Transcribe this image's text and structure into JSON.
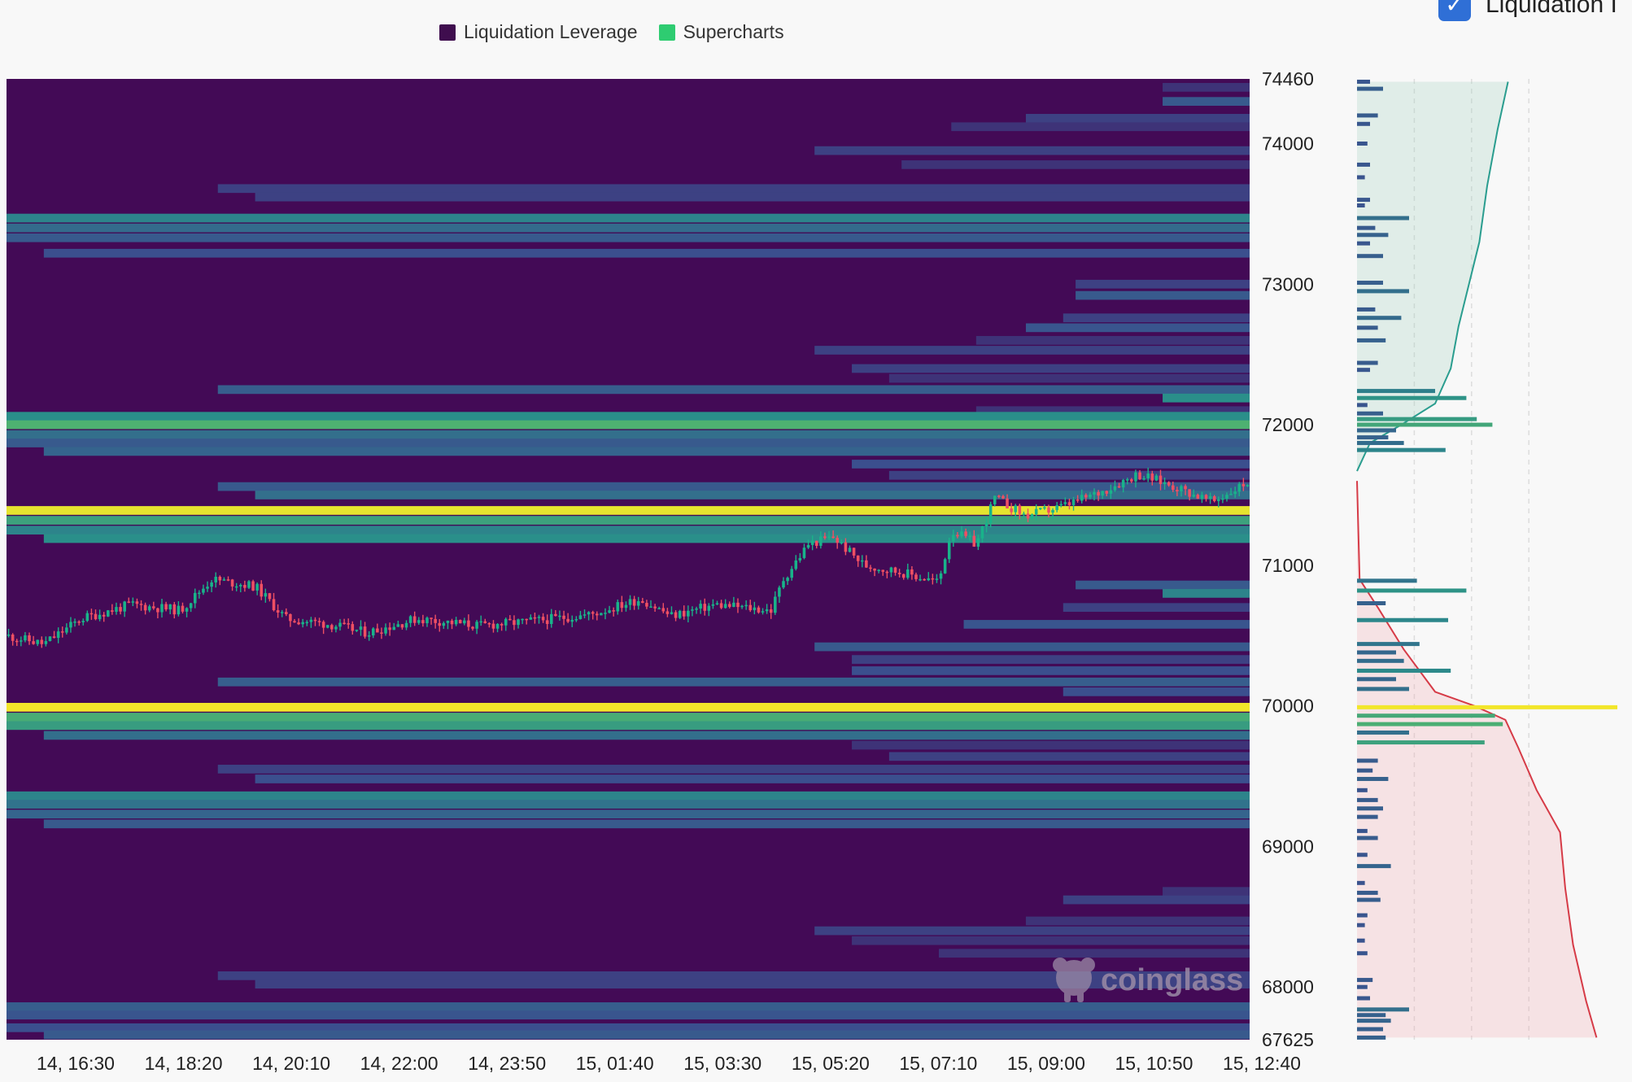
{
  "legend": {
    "items": [
      {
        "label": "Liquidation Leverage",
        "color": "#3f0d4e"
      },
      {
        "label": "Supercharts",
        "color": "#2ecc71"
      }
    ]
  },
  "top_right": {
    "label": "Liquidation I",
    "checked": true,
    "checkbox_color": "#2f6fd6"
  },
  "watermark": {
    "text": "coinglass"
  },
  "chart_data": {
    "type": "heatmap",
    "title": "",
    "colors": {
      "background": "#430a56",
      "low": "#3b4f8e",
      "mid": "#2a8f8a",
      "high": "#6fd05a",
      "max": "#f2e62a",
      "candle_up": "#19b38a",
      "candle_down": "#ef4f63"
    },
    "x_ticks": [
      "14, 16:30",
      "14, 18:20",
      "14, 20:10",
      "14, 22:00",
      "14, 23:50",
      "15, 01:40",
      "15, 03:30",
      "15, 05:20",
      "15, 07:10",
      "15, 09:00",
      "15, 10:50",
      "15, 12:40"
    ],
    "y_ticks": [
      74460,
      74000,
      73000,
      72000,
      71000,
      70000,
      69000,
      68000,
      67625
    ],
    "ylim": [
      67625,
      74460
    ],
    "price_path": [
      {
        "t": 0.0,
        "price": 70500
      },
      {
        "t": 0.03,
        "price": 70440
      },
      {
        "t": 0.06,
        "price": 70620
      },
      {
        "t": 0.1,
        "price": 70720
      },
      {
        "t": 0.14,
        "price": 70680
      },
      {
        "t": 0.165,
        "price": 70900
      },
      {
        "t": 0.2,
        "price": 70850
      },
      {
        "t": 0.225,
        "price": 70620
      },
      {
        "t": 0.26,
        "price": 70580
      },
      {
        "t": 0.29,
        "price": 70520
      },
      {
        "t": 0.33,
        "price": 70620
      },
      {
        "t": 0.38,
        "price": 70570
      },
      {
        "t": 0.42,
        "price": 70600
      },
      {
        "t": 0.47,
        "price": 70650
      },
      {
        "t": 0.51,
        "price": 70760
      },
      {
        "t": 0.535,
        "price": 70640
      },
      {
        "t": 0.57,
        "price": 70720
      },
      {
        "t": 0.615,
        "price": 70680
      },
      {
        "t": 0.625,
        "price": 70900
      },
      {
        "t": 0.645,
        "price": 71150
      },
      {
        "t": 0.665,
        "price": 71200
      },
      {
        "t": 0.69,
        "price": 71000
      },
      {
        "t": 0.72,
        "price": 70950
      },
      {
        "t": 0.75,
        "price": 70880
      },
      {
        "t": 0.76,
        "price": 71250
      },
      {
        "t": 0.78,
        "price": 71150
      },
      {
        "t": 0.795,
        "price": 71480
      },
      {
        "t": 0.82,
        "price": 71350
      },
      {
        "t": 0.85,
        "price": 71420
      },
      {
        "t": 0.88,
        "price": 71520
      },
      {
        "t": 0.91,
        "price": 71650
      },
      {
        "t": 0.94,
        "price": 71560
      },
      {
        "t": 0.97,
        "price": 71450
      },
      {
        "t": 1.0,
        "price": 71600
      }
    ],
    "bands": [
      {
        "price": 74400,
        "start": 0.93,
        "intensity": 0.15
      },
      {
        "price": 74300,
        "start": 0.93,
        "intensity": 0.3
      },
      {
        "price": 74180,
        "start": 0.82,
        "intensity": 0.2
      },
      {
        "price": 74120,
        "start": 0.76,
        "intensity": 0.15
      },
      {
        "price": 73950,
        "start": 0.65,
        "intensity": 0.2
      },
      {
        "price": 73850,
        "start": 0.72,
        "intensity": 0.15
      },
      {
        "price": 73680,
        "start": 0.17,
        "intensity": 0.2
      },
      {
        "price": 73620,
        "start": 0.2,
        "intensity": 0.2
      },
      {
        "price": 73470,
        "start": 0.0,
        "intensity": 0.5
      },
      {
        "price": 73400,
        "start": 0.0,
        "intensity": 0.38
      },
      {
        "price": 73330,
        "start": 0.0,
        "intensity": 0.3
      },
      {
        "price": 73220,
        "start": 0.03,
        "intensity": 0.25
      },
      {
        "price": 73000,
        "start": 0.86,
        "intensity": 0.2
      },
      {
        "price": 72920,
        "start": 0.86,
        "intensity": 0.3
      },
      {
        "price": 72760,
        "start": 0.85,
        "intensity": 0.2
      },
      {
        "price": 72690,
        "start": 0.82,
        "intensity": 0.28
      },
      {
        "price": 72600,
        "start": 0.78,
        "intensity": 0.15
      },
      {
        "price": 72530,
        "start": 0.65,
        "intensity": 0.2
      },
      {
        "price": 72400,
        "start": 0.68,
        "intensity": 0.2
      },
      {
        "price": 72330,
        "start": 0.71,
        "intensity": 0.15
      },
      {
        "price": 72250,
        "start": 0.17,
        "intensity": 0.32
      },
      {
        "price": 72190,
        "start": 0.93,
        "intensity": 0.55
      },
      {
        "price": 72100,
        "start": 0.78,
        "intensity": 0.15
      },
      {
        "price": 72060,
        "start": 0.0,
        "intensity": 0.55
      },
      {
        "price": 72000,
        "start": 0.0,
        "intensity": 0.68
      },
      {
        "price": 71930,
        "start": 0.0,
        "intensity": 0.4
      },
      {
        "price": 71870,
        "start": 0.0,
        "intensity": 0.3
      },
      {
        "price": 71810,
        "start": 0.03,
        "intensity": 0.35
      },
      {
        "price": 71720,
        "start": 0.68,
        "intensity": 0.25
      },
      {
        "price": 71640,
        "start": 0.71,
        "intensity": 0.2
      },
      {
        "price": 71560,
        "start": 0.17,
        "intensity": 0.3
      },
      {
        "price": 71500,
        "start": 0.2,
        "intensity": 0.4
      },
      {
        "price": 71390,
        "start": 0.0,
        "intensity": 0.98
      },
      {
        "price": 71320,
        "start": 0.0,
        "intensity": 0.62
      },
      {
        "price": 71250,
        "start": 0.0,
        "intensity": 0.5
      },
      {
        "price": 71190,
        "start": 0.03,
        "intensity": 0.55
      },
      {
        "price": 70860,
        "start": 0.86,
        "intensity": 0.3
      },
      {
        "price": 70800,
        "start": 0.93,
        "intensity": 0.5
      },
      {
        "price": 70700,
        "start": 0.85,
        "intensity": 0.2
      },
      {
        "price": 70580,
        "start": 0.77,
        "intensity": 0.28
      },
      {
        "price": 70420,
        "start": 0.65,
        "intensity": 0.3
      },
      {
        "price": 70330,
        "start": 0.68,
        "intensity": 0.2
      },
      {
        "price": 70250,
        "start": 0.68,
        "intensity": 0.25
      },
      {
        "price": 70170,
        "start": 0.17,
        "intensity": 0.32
      },
      {
        "price": 70100,
        "start": 0.85,
        "intensity": 0.25
      },
      {
        "price": 69990,
        "start": 0.0,
        "intensity": 1.0
      },
      {
        "price": 69920,
        "start": 0.0,
        "intensity": 0.66
      },
      {
        "price": 69860,
        "start": 0.0,
        "intensity": 0.6
      },
      {
        "price": 69790,
        "start": 0.03,
        "intensity": 0.4
      },
      {
        "price": 69720,
        "start": 0.68,
        "intensity": 0.15
      },
      {
        "price": 69640,
        "start": 0.71,
        "intensity": 0.2
      },
      {
        "price": 69550,
        "start": 0.17,
        "intensity": 0.2
      },
      {
        "price": 69480,
        "start": 0.2,
        "intensity": 0.25
      },
      {
        "price": 69360,
        "start": 0.0,
        "intensity": 0.5
      },
      {
        "price": 69300,
        "start": 0.0,
        "intensity": 0.42
      },
      {
        "price": 69230,
        "start": 0.0,
        "intensity": 0.35
      },
      {
        "price": 69160,
        "start": 0.03,
        "intensity": 0.3
      },
      {
        "price": 68680,
        "start": 0.93,
        "intensity": 0.15
      },
      {
        "price": 68620,
        "start": 0.85,
        "intensity": 0.2
      },
      {
        "price": 68470,
        "start": 0.82,
        "intensity": 0.15
      },
      {
        "price": 68400,
        "start": 0.65,
        "intensity": 0.2
      },
      {
        "price": 68330,
        "start": 0.68,
        "intensity": 0.15
      },
      {
        "price": 68240,
        "start": 0.75,
        "intensity": 0.15
      },
      {
        "price": 68080,
        "start": 0.17,
        "intensity": 0.2
      },
      {
        "price": 68020,
        "start": 0.2,
        "intensity": 0.2
      },
      {
        "price": 67860,
        "start": 0.0,
        "intensity": 0.32
      },
      {
        "price": 67800,
        "start": 0.0,
        "intensity": 0.28
      },
      {
        "price": 67710,
        "start": 0.0,
        "intensity": 0.25
      },
      {
        "price": 67660,
        "start": 0.03,
        "intensity": 0.3
      }
    ],
    "profile_bars": [
      {
        "price": 74440,
        "value": 0.05
      },
      {
        "price": 74390,
        "value": 0.1
      },
      {
        "price": 74200,
        "value": 0.08
      },
      {
        "price": 74140,
        "value": 0.05
      },
      {
        "price": 74000,
        "value": 0.04
      },
      {
        "price": 73850,
        "value": 0.05
      },
      {
        "price": 73760,
        "value": 0.03
      },
      {
        "price": 73600,
        "value": 0.05
      },
      {
        "price": 73560,
        "value": 0.03
      },
      {
        "price": 73470,
        "value": 0.2
      },
      {
        "price": 73400,
        "value": 0.07
      },
      {
        "price": 73350,
        "value": 0.12
      },
      {
        "price": 73290,
        "value": 0.05
      },
      {
        "price": 73200,
        "value": 0.1
      },
      {
        "price": 73010,
        "value": 0.1
      },
      {
        "price": 72950,
        "value": 0.2
      },
      {
        "price": 72820,
        "value": 0.07
      },
      {
        "price": 72760,
        "value": 0.17
      },
      {
        "price": 72690,
        "value": 0.08
      },
      {
        "price": 72600,
        "value": 0.11
      },
      {
        "price": 72440,
        "value": 0.08
      },
      {
        "price": 72390,
        "value": 0.05
      },
      {
        "price": 72240,
        "value": 0.3
      },
      {
        "price": 72190,
        "value": 0.42
      },
      {
        "price": 72140,
        "value": 0.04
      },
      {
        "price": 72080,
        "value": 0.1
      },
      {
        "price": 72040,
        "value": 0.46
      },
      {
        "price": 72000,
        "value": 0.52
      },
      {
        "price": 71960,
        "value": 0.15
      },
      {
        "price": 71910,
        "value": 0.12
      },
      {
        "price": 71870,
        "value": 0.18
      },
      {
        "price": 71820,
        "value": 0.34
      },
      {
        "price": 70890,
        "value": 0.23
      },
      {
        "price": 70820,
        "value": 0.42
      },
      {
        "price": 70730,
        "value": 0.11
      },
      {
        "price": 70610,
        "value": 0.35
      },
      {
        "price": 70440,
        "value": 0.24
      },
      {
        "price": 70380,
        "value": 0.15
      },
      {
        "price": 70320,
        "value": 0.18
      },
      {
        "price": 70250,
        "value": 0.36
      },
      {
        "price": 70190,
        "value": 0.15
      },
      {
        "price": 70120,
        "value": 0.2
      },
      {
        "price": 69990,
        "value": 1.0
      },
      {
        "price": 69930,
        "value": 0.53
      },
      {
        "price": 69870,
        "value": 0.56
      },
      {
        "price": 69810,
        "value": 0.2
      },
      {
        "price": 69740,
        "value": 0.49
      },
      {
        "price": 69610,
        "value": 0.08
      },
      {
        "price": 69540,
        "value": 0.06
      },
      {
        "price": 69480,
        "value": 0.12
      },
      {
        "price": 69400,
        "value": 0.04
      },
      {
        "price": 69330,
        "value": 0.08
      },
      {
        "price": 69270,
        "value": 0.1
      },
      {
        "price": 69210,
        "value": 0.08
      },
      {
        "price": 69110,
        "value": 0.04
      },
      {
        "price": 69060,
        "value": 0.08
      },
      {
        "price": 68940,
        "value": 0.04
      },
      {
        "price": 68860,
        "value": 0.13
      },
      {
        "price": 68740,
        "value": 0.03
      },
      {
        "price": 68670,
        "value": 0.08
      },
      {
        "price": 68620,
        "value": 0.09
      },
      {
        "price": 68510,
        "value": 0.04
      },
      {
        "price": 68440,
        "value": 0.03
      },
      {
        "price": 68330,
        "value": 0.03
      },
      {
        "price": 68240,
        "value": 0.04
      },
      {
        "price": 68050,
        "value": 0.06
      },
      {
        "price": 68000,
        "value": 0.04
      },
      {
        "price": 67920,
        "value": 0.05
      },
      {
        "price": 67840,
        "value": 0.2
      },
      {
        "price": 67800,
        "value": 0.11
      },
      {
        "price": 67760,
        "value": 0.13
      },
      {
        "price": 67700,
        "value": 0.1
      },
      {
        "price": 67640,
        "value": 0.11
      }
    ],
    "cumulative_short": [
      {
        "price": 71670,
        "value": 0.0
      },
      {
        "price": 71870,
        "value": 0.05
      },
      {
        "price": 72000,
        "value": 0.17
      },
      {
        "price": 72150,
        "value": 0.3
      },
      {
        "price": 72400,
        "value": 0.36
      },
      {
        "price": 72700,
        "value": 0.39
      },
      {
        "price": 73000,
        "value": 0.43
      },
      {
        "price": 73300,
        "value": 0.47
      },
      {
        "price": 73700,
        "value": 0.5
      },
      {
        "price": 74100,
        "value": 0.54
      },
      {
        "price": 74440,
        "value": 0.58
      }
    ],
    "cumulative_long": [
      {
        "price": 71600,
        "value": 0.0
      },
      {
        "price": 70900,
        "value": 0.01
      },
      {
        "price": 70700,
        "value": 0.08
      },
      {
        "price": 70400,
        "value": 0.18
      },
      {
        "price": 70100,
        "value": 0.3
      },
      {
        "price": 70000,
        "value": 0.45
      },
      {
        "price": 69900,
        "value": 0.57
      },
      {
        "price": 69700,
        "value": 0.62
      },
      {
        "price": 69400,
        "value": 0.69
      },
      {
        "price": 69100,
        "value": 0.78
      },
      {
        "price": 68700,
        "value": 0.8
      },
      {
        "price": 68300,
        "value": 0.83
      },
      {
        "price": 67900,
        "value": 0.88
      },
      {
        "price": 67640,
        "value": 0.92
      }
    ]
  }
}
